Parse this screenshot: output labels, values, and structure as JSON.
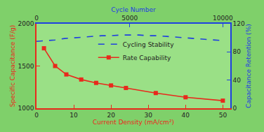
{
  "chart_data": {
    "type": "line",
    "xlabel": "Current Density (mA/cm²)",
    "ylabel": "Specific Capacitance (F/g)",
    "x2label": "Cycle Number",
    "y2label": "Capacitance Retention (%)",
    "xlim": [
      0,
      52
    ],
    "xticks": [
      0,
      10,
      20,
      30,
      40,
      50
    ],
    "ylim": [
      1000,
      2000
    ],
    "yticks": [
      1000,
      1500,
      2000
    ],
    "x2lim": [
      0,
      10400
    ],
    "x2ticks": [
      0,
      5000,
      10000
    ],
    "y2lim": [
      0,
      120
    ],
    "y2ticks": [
      0,
      40,
      80,
      120
    ],
    "legend": "center",
    "series": [
      {
        "name": "Cycling Stability",
        "color": "#1f3fe0",
        "line_style": "dashed",
        "axis": "y2",
        "x": [
          0,
          500,
          1000,
          1500,
          2000,
          2500,
          3000,
          3500,
          4000,
          4500,
          5000,
          5500,
          6000,
          6500,
          7000,
          7500,
          8000,
          8500,
          9000,
          9500,
          10000
        ],
        "values": [
          95,
          96,
          97,
          99,
          100,
          101,
          102,
          103,
          103,
          104,
          104,
          104,
          103,
          103,
          102,
          101,
          100,
          99,
          98,
          97,
          96
        ]
      },
      {
        "name": "Rate Capability",
        "color": "#e8291c",
        "line_style": "solid",
        "marker": "square",
        "axis": "y",
        "x": [
          2,
          5,
          8,
          12,
          16,
          20,
          24,
          32,
          40,
          50
        ],
        "values": [
          1710,
          1500,
          1400,
          1340,
          1300,
          1270,
          1240,
          1180,
          1130,
          1090
        ]
      }
    ]
  }
}
